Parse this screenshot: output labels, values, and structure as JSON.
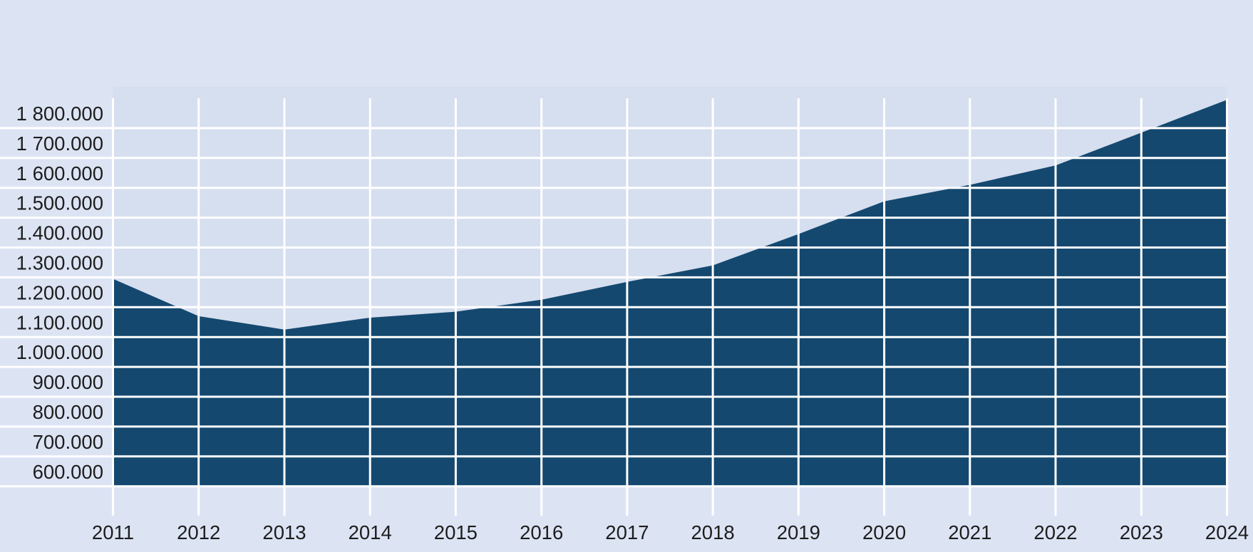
{
  "chart_data": {
    "type": "area",
    "title": "",
    "categories": [
      2011,
      2012,
      2013,
      2014,
      2015,
      2016,
      2017,
      2018,
      2019,
      2020,
      2021,
      2022,
      2023,
      2024
    ],
    "values": [
      1295000,
      1170000,
      1125000,
      1165000,
      1185000,
      1225000,
      1285000,
      1340000,
      1445000,
      1555000,
      1610000,
      1675000,
      1785000,
      1895000
    ],
    "x_tick_labels": [
      "2011",
      "2012",
      "2013",
      "2014",
      "2015",
      "2016",
      "2017",
      "2018",
      "2019",
      "2020",
      "2021",
      "2022",
      "2023",
      "2024"
    ],
    "y_ticks": [
      {
        "value": 600000,
        "label": "600.000"
      },
      {
        "value": 700000,
        "label": "700.000"
      },
      {
        "value": 800000,
        "label": "800.000"
      },
      {
        "value": 900000,
        "label": "900.000"
      },
      {
        "value": 1000000,
        "label": "1.000.000"
      },
      {
        "value": 1100000,
        "label": "1.100.000"
      },
      {
        "value": 1200000,
        "label": "1.200.000"
      },
      {
        "value": 1300000,
        "label": "1.300.000"
      },
      {
        "value": 1400000,
        "label": "1.400.000"
      },
      {
        "value": 1500000,
        "label": "1.500.000"
      },
      {
        "value": 1600000,
        "label": "1 600.000"
      },
      {
        "value": 1700000,
        "label": "1 700.000"
      },
      {
        "value": 1800000,
        "label": "1 800.000"
      }
    ],
    "ylim": [
      600000,
      1900000
    ],
    "grid": "white gridlines, horizontal lines extend left behind y-axis labels, vertical ticks extend below plot",
    "legend": "none"
  },
  "colors": {
    "page_background": "#dce4f4",
    "plot_background": "#d6dfef",
    "gridline": "#ffffff",
    "area_fill": "#14486f",
    "label_text": "#1d1d1d"
  }
}
